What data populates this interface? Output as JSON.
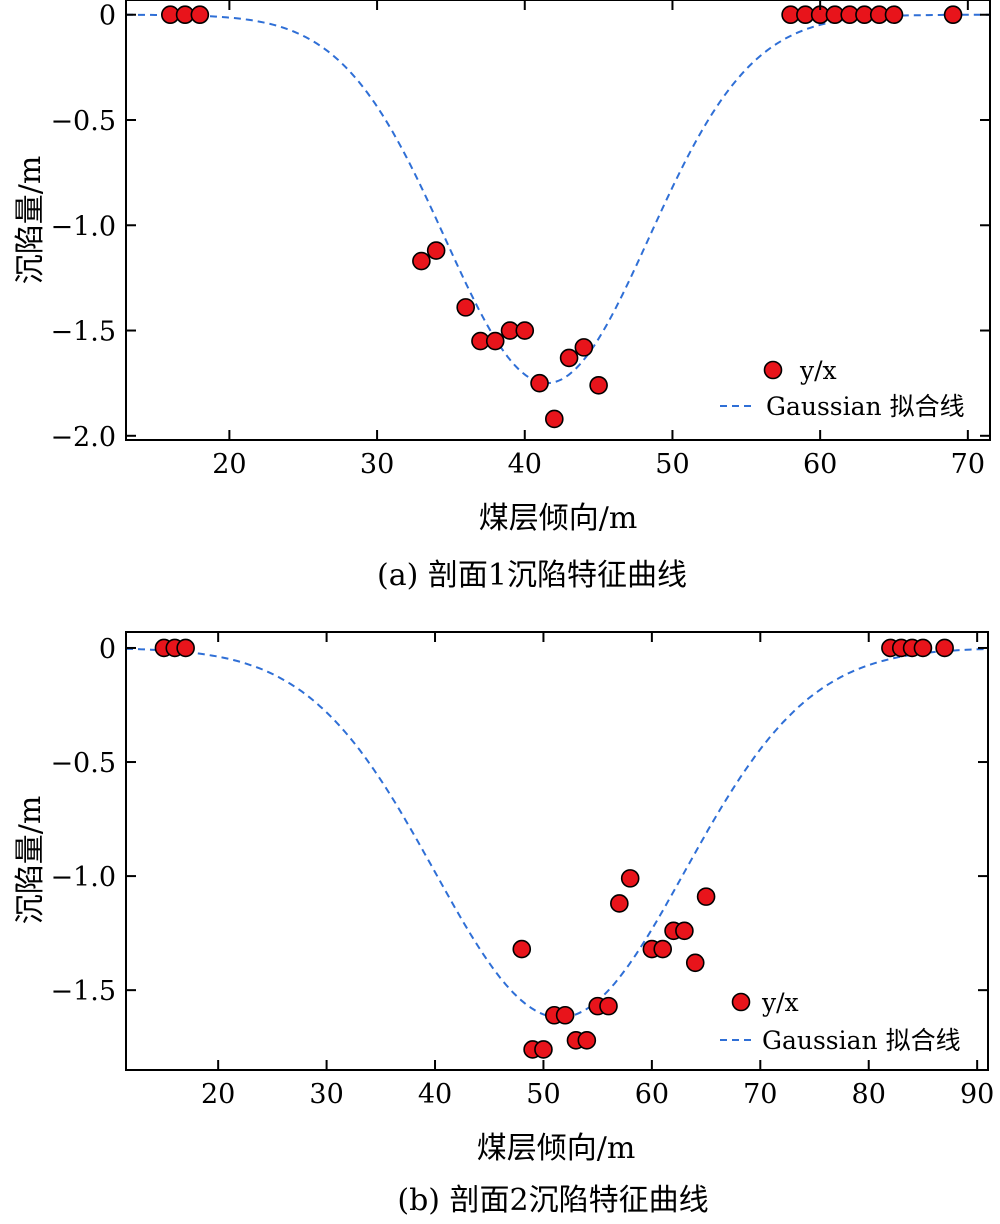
{
  "chart_data": [
    {
      "type": "scatter",
      "caption": "(a) 剖面1沉陷特征曲线",
      "xlabel": "煤层倾向/m",
      "ylabel": "沉陷量/m",
      "xlim": [
        13,
        71.5
      ],
      "ylim": [
        -2.02,
        0.07
      ],
      "xticks": [
        20,
        30,
        40,
        50,
        60,
        70
      ],
      "yticks": [
        0,
        -0.5,
        -1.0,
        -1.5,
        -2.0
      ],
      "xtick_labels": [
        "20",
        "30",
        "40",
        "50",
        "60",
        "70"
      ],
      "ytick_labels": [
        "0",
        "−0.5",
        "−1.0",
        "−1.5",
        "−2.0"
      ],
      "legend": {
        "placement": "lower-right",
        "entries": [
          "y/x",
          "Gaussian 拟合线"
        ]
      },
      "series": [
        {
          "name": "y/x",
          "kind": "scatter",
          "color": "#e8141b",
          "x": [
            16,
            17,
            18,
            33,
            34,
            36,
            37,
            38,
            39,
            40,
            41,
            42,
            43,
            44,
            45,
            58,
            59,
            60,
            61,
            62,
            63,
            64,
            65,
            69
          ],
          "y": [
            0,
            0,
            0,
            -1.17,
            -1.12,
            -1.39,
            -1.55,
            -1.55,
            -1.5,
            -1.5,
            -1.75,
            -1.92,
            -1.63,
            -1.58,
            -1.76,
            0,
            0,
            0,
            0,
            0,
            0,
            0,
            0,
            0
          ]
        },
        {
          "name": "Gaussian 拟合线",
          "kind": "line",
          "style": "dashed",
          "color": "#2f6fd6",
          "model": {
            "amplitude": -1.75,
            "center": 41.5,
            "sigma": 6.9
          }
        }
      ]
    },
    {
      "type": "scatter",
      "caption": "(b) 剖面2沉陷特征曲线",
      "xlabel": "煤层倾向/m",
      "ylabel": "沉陷量/m",
      "xlim": [
        11.5,
        91
      ],
      "ylim": [
        -1.85,
        0.07
      ],
      "xticks": [
        20,
        30,
        40,
        50,
        60,
        70,
        80,
        90
      ],
      "yticks": [
        0,
        -0.5,
        -1.0,
        -1.5
      ],
      "xtick_labels": [
        "20",
        "30",
        "40",
        "50",
        "60",
        "70",
        "80",
        "90"
      ],
      "ytick_labels": [
        "0",
        "−0.5",
        "−1.0",
        "−1.5"
      ],
      "legend": {
        "placement": "lower-right",
        "entries": [
          "y/x",
          "Gaussian 拟合线"
        ]
      },
      "series": [
        {
          "name": "y/x",
          "kind": "scatter",
          "color": "#e8141b",
          "x": [
            15,
            16,
            17,
            48,
            49,
            50,
            51,
            52,
            53,
            54,
            55,
            56,
            57,
            58,
            60,
            61,
            62,
            63,
            64,
            65,
            82,
            83,
            84,
            85,
            87
          ],
          "y": [
            0,
            0,
            0,
            -1.32,
            -1.76,
            -1.76,
            -1.61,
            -1.61,
            -1.72,
            -1.72,
            -1.57,
            -1.57,
            -1.12,
            -1.01,
            -1.32,
            -1.32,
            -1.24,
            -1.24,
            -1.38,
            -1.09,
            0,
            0,
            0,
            0,
            0
          ]
        },
        {
          "name": "Gaussian 拟合线",
          "kind": "line",
          "style": "dashed",
          "color": "#2f6fd6",
          "model": {
            "amplitude": -1.62,
            "center": 51.5,
            "sigma": 11.5
          }
        }
      ]
    }
  ]
}
